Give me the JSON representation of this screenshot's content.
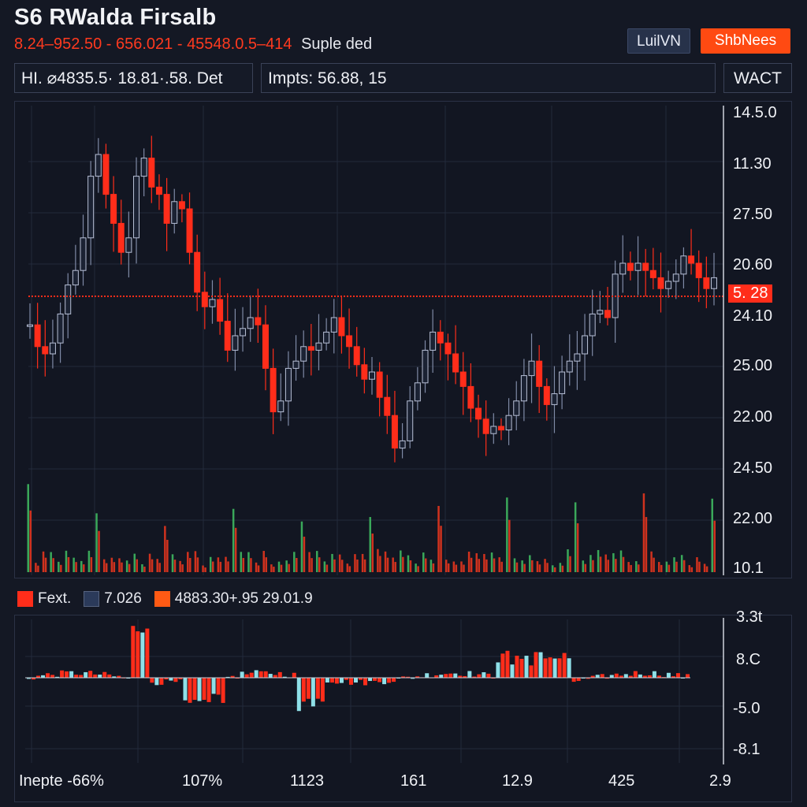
{
  "header": {
    "title": "S6 RWalda Firsalb",
    "ticker_text": "8.24–952.50 - 656.021 - 45548.0.5–414",
    "note": "Suple ded",
    "buttons": [
      {
        "label": "LuilVN"
      },
      {
        "label": "ShbNees"
      }
    ]
  },
  "infobar": {
    "box1": "HI.  ⌀4835.5· 18.81·.58. Det",
    "box2": "Impts: 56.88,   15",
    "box3": "WACT"
  },
  "price_tag": "5. 28",
  "legend": {
    "items": [
      {
        "label": "Fext.",
        "color": "#ff2d1a"
      },
      {
        "label": "7.026",
        "color": "#2b3a5a"
      },
      {
        "label": "4883.30+.95 29.01.9",
        "color": "#ff5a14"
      }
    ]
  },
  "colors": {
    "bear": "#ff2d1a",
    "bull": "#7f8aa6",
    "vol_green": "#3aa85a",
    "vol_red": "#d0321e",
    "cyan": "#8fe0e8",
    "priceline": "#ff2d1a",
    "grid": "#232a3b"
  },
  "chart_data": [
    {
      "type": "candlestick",
      "title": "S6 RWalda Firsalb",
      "y_tick_labels": [
        "14.5.0",
        "11.30",
        "27.50",
        "20.60",
        "24.10",
        "25.00",
        "22.00",
        "24.50",
        "22.00",
        "10.1"
      ],
      "current_price_label": "5. 28",
      "candles_normalized": [
        0.43,
        0.37,
        0.35,
        0.38,
        0.46,
        0.54,
        0.58,
        0.67,
        0.84,
        0.9,
        0.79,
        0.71,
        0.63,
        0.67,
        0.84,
        0.89,
        0.81,
        0.79,
        0.71,
        0.77,
        0.75,
        0.63,
        0.52,
        0.48,
        0.5,
        0.44,
        0.36,
        0.4,
        0.42,
        0.45,
        0.43,
        0.31,
        0.19,
        0.22,
        0.31,
        0.33,
        0.37,
        0.36,
        0.38,
        0.41,
        0.45,
        0.4,
        0.37,
        0.32,
        0.28,
        0.3,
        0.23,
        0.18,
        0.09,
        0.11,
        0.22,
        0.27,
        0.36,
        0.41,
        0.38,
        0.35,
        0.3,
        0.26,
        0.2,
        0.17,
        0.13,
        0.15,
        0.14,
        0.18,
        0.22,
        0.29,
        0.33,
        0.26,
        0.21,
        0.24,
        0.3,
        0.33,
        0.35,
        0.4,
        0.46,
        0.47,
        0.45,
        0.57,
        0.6,
        0.58,
        0.6,
        0.58,
        0.56,
        0.53,
        0.55,
        0.57,
        0.62,
        0.6,
        0.56,
        0.53,
        0.56
      ],
      "grid": true
    },
    {
      "type": "bar",
      "series_name": "volume",
      "grid": false
    },
    {
      "type": "bar",
      "series_name": "oscillator",
      "y_tick_labels": [
        "3.3t",
        "8.C",
        "-5.0",
        "-8.1"
      ],
      "x_tick_labels": [
        "Inepte -66%",
        "107%",
        "1123",
        "161",
        "12.9",
        "425",
        "2.9"
      ],
      "grid": true
    }
  ]
}
